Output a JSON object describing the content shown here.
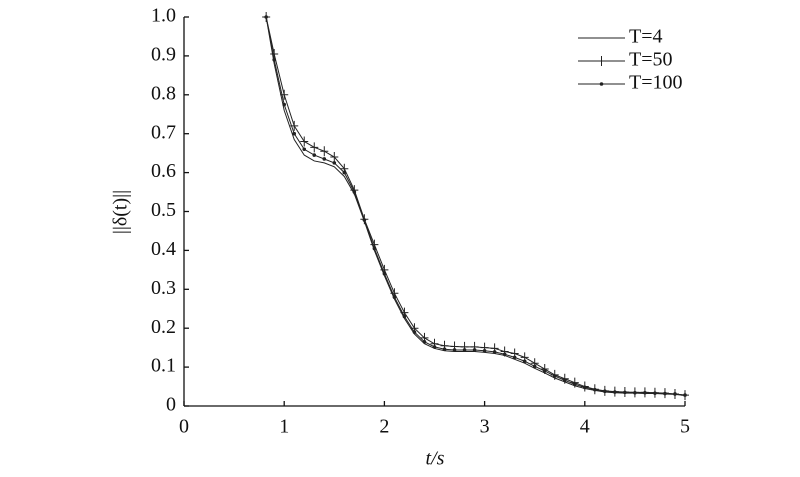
{
  "chart_data": {
    "type": "line",
    "xlabel": "t/s",
    "ylabel": "||δ(t)||",
    "x": [
      0.82,
      0.9,
      1.0,
      1.1,
      1.2,
      1.3,
      1.4,
      1.5,
      1.6,
      1.7,
      1.8,
      1.9,
      2.0,
      2.1,
      2.2,
      2.3,
      2.4,
      2.5,
      2.6,
      2.7,
      2.8,
      2.9,
      3.0,
      3.1,
      3.2,
      3.3,
      3.4,
      3.5,
      3.6,
      3.7,
      3.8,
      3.9,
      4.0,
      4.1,
      4.2,
      4.3,
      4.4,
      4.5,
      4.6,
      4.7,
      4.8,
      4.9,
      5.0
    ],
    "series": [
      {
        "name": "T=4",
        "color": "#222222",
        "values": [
          1.0,
          0.88,
          0.76,
          0.685,
          0.645,
          0.63,
          0.625,
          0.615,
          0.59,
          0.545,
          0.475,
          0.4,
          0.335,
          0.275,
          0.225,
          0.185,
          0.16,
          0.148,
          0.142,
          0.14,
          0.14,
          0.14,
          0.138,
          0.135,
          0.13,
          0.12,
          0.11,
          0.097,
          0.085,
          0.072,
          0.062,
          0.052,
          0.045,
          0.04,
          0.036,
          0.034,
          0.033,
          0.033,
          0.032,
          0.032,
          0.031,
          0.03,
          0.027
        ]
      },
      {
        "name": "T=50",
        "color": "#222222",
        "marker": "plus",
        "values": [
          1.0,
          0.905,
          0.8,
          0.72,
          0.68,
          0.665,
          0.655,
          0.64,
          0.61,
          0.555,
          0.48,
          0.415,
          0.35,
          0.29,
          0.24,
          0.2,
          0.175,
          0.16,
          0.155,
          0.153,
          0.152,
          0.152,
          0.15,
          0.148,
          0.14,
          0.135,
          0.125,
          0.11,
          0.095,
          0.08,
          0.07,
          0.06,
          0.05,
          0.043,
          0.039,
          0.037,
          0.036,
          0.035,
          0.035,
          0.034,
          0.033,
          0.031,
          0.028
        ]
      },
      {
        "name": "T=100",
        "color": "#222222",
        "marker": "dot",
        "values": [
          1.0,
          0.89,
          0.775,
          0.7,
          0.66,
          0.645,
          0.635,
          0.625,
          0.6,
          0.55,
          0.478,
          0.405,
          0.34,
          0.28,
          0.23,
          0.19,
          0.165,
          0.152,
          0.146,
          0.144,
          0.144,
          0.144,
          0.142,
          0.139,
          0.133,
          0.125,
          0.115,
          0.102,
          0.09,
          0.077,
          0.066,
          0.056,
          0.048,
          0.042,
          0.038,
          0.036,
          0.035,
          0.034,
          0.034,
          0.033,
          0.032,
          0.031,
          0.028
        ]
      }
    ],
    "xlim": [
      0,
      5
    ],
    "xticks": [
      0,
      1,
      2,
      3,
      4,
      5
    ],
    "ylim": [
      0,
      1
    ],
    "yticks": [
      0,
      0.1,
      0.2,
      0.3,
      0.4,
      0.5,
      0.6,
      0.7,
      0.8,
      0.9,
      {
        "value": 1,
        "label": "1.0"
      }
    ],
    "legend": "upper right"
  }
}
